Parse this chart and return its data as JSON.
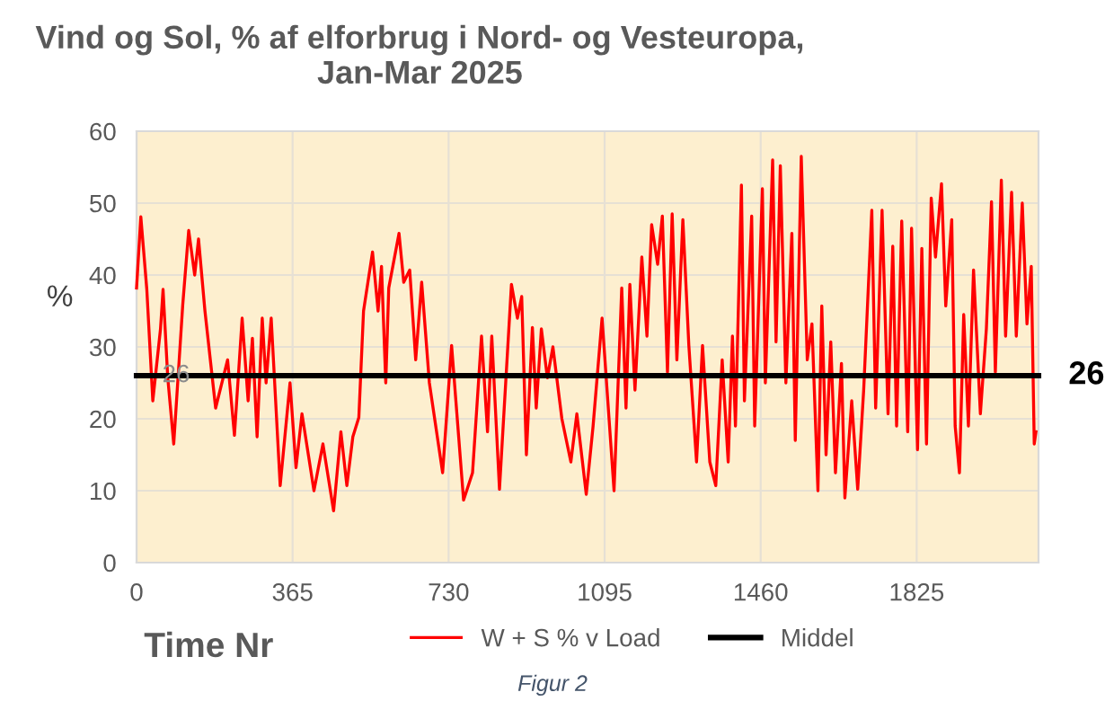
{
  "chart_data": {
    "type": "line",
    "title": "Vind og Sol, % af elforbrug i Nord- og Vesteuropa,\nJan-Mar 2025",
    "xlabel": "Time Nr",
    "ylabel": "%",
    "xlim": [
      0,
      2110
    ],
    "xticks": [
      0,
      365,
      730,
      1095,
      1460,
      1825
    ],
    "ylim": [
      0,
      60
    ],
    "yticks": [
      0,
      10,
      20,
      30,
      40,
      50,
      60
    ],
    "grid": true,
    "legend": "bottom",
    "marker": "none",
    "line_style": "solid",
    "series": [
      {
        "name": "W + S % v Load",
        "color": "#ff0000",
        "x": [
          0,
          10,
          24,
          38,
          56,
          62,
          73,
          87,
          108,
          122,
          136,
          145,
          160,
          185,
          213,
          229,
          247,
          261,
          271,
          282,
          294,
          303,
          315,
          336,
          359,
          373,
          387,
          415,
          436,
          461,
          478,
          492,
          506,
          520,
          531,
          552,
          565,
          573,
          583,
          590,
          614,
          625,
          639,
          653,
          667,
          685,
          716,
          737,
          765,
          786,
          807,
          821,
          831,
          849,
          877,
          891,
          901,
          912,
          926,
          935,
          947,
          961,
          974,
          995,
          1016,
          1030,
          1052,
          1068,
          1089,
          1117,
          1135,
          1145,
          1154,
          1166,
          1182,
          1194,
          1205,
          1219,
          1230,
          1242,
          1253,
          1264,
          1278,
          1292,
          1310,
          1324,
          1341,
          1355,
          1370,
          1384,
          1394,
          1401,
          1415,
          1422,
          1439,
          1446,
          1464,
          1471,
          1488,
          1496,
          1506,
          1519,
          1533,
          1541,
          1555,
          1569,
          1580,
          1594,
          1603,
          1613,
          1624,
          1635,
          1649,
          1657,
          1673,
          1687,
          1701,
          1720,
          1729,
          1744,
          1758,
          1769,
          1778,
          1790,
          1804,
          1813,
          1827,
          1837,
          1848,
          1859,
          1869,
          1883,
          1893,
          1907,
          1915,
          1925,
          1935,
          1946,
          1958,
          1974,
          1988,
          2000,
          2009,
          2023,
          2033,
          2047,
          2058,
          2072,
          2083,
          2093,
          2100,
          2104
        ],
        "values": [
          38.2,
          48.1,
          38,
          22.5,
          32.5,
          38,
          25.7,
          16.5,
          35.8,
          46.2,
          40,
          45,
          35,
          21.5,
          28.2,
          17.7,
          34,
          22.5,
          31.2,
          17.5,
          34,
          25,
          34,
          10.7,
          25,
          13.2,
          20.7,
          10,
          16.5,
          7.2,
          18.2,
          10.7,
          17.5,
          20.2,
          35,
          43.2,
          35,
          41.2,
          25,
          38.2,
          45.8,
          39,
          40.7,
          28.2,
          39,
          25,
          12.5,
          30.2,
          8.7,
          12.5,
          31.5,
          18.2,
          31.5,
          10.2,
          38.7,
          34,
          37,
          15,
          32.7,
          21.5,
          32.5,
          25.7,
          30,
          20,
          14,
          20.7,
          9.5,
          19,
          34,
          10,
          38.2,
          21.5,
          38.7,
          24,
          42.5,
          31.5,
          47,
          41.5,
          48.2,
          26.5,
          48.5,
          28.2,
          47.7,
          30.2,
          14,
          30.2,
          14,
          10.7,
          28.2,
          14,
          31.5,
          19,
          52.5,
          22.5,
          48.2,
          19,
          52,
          25,
          56,
          30.7,
          55.2,
          25,
          45.8,
          17,
          56.5,
          28.2,
          33.2,
          10,
          35.7,
          15,
          30.7,
          12.5,
          27.7,
          9,
          22.5,
          10.2,
          24,
          49,
          21.5,
          49,
          20.7,
          44,
          19,
          47.5,
          18.2,
          46.5,
          15.7,
          43.7,
          16.5,
          50.7,
          42.5,
          52.7,
          35.7,
          47.7,
          19,
          12.5,
          34.5,
          19,
          40.7,
          20.7,
          32.5,
          50.2,
          26.5,
          53.2,
          31.5,
          51.5,
          31.5,
          50,
          33.2,
          41.2,
          16.5,
          18.2
        ]
      },
      {
        "name": "Middel",
        "color": "#000000",
        "x": [
          0,
          2110
        ],
        "values": [
          26,
          26
        ]
      }
    ],
    "annotations": [
      {
        "text": "26",
        "x": 2110,
        "y": 26
      },
      {
        "text": "26",
        "x": 60,
        "y": 26
      },
      "Figur 2"
    ]
  }
}
